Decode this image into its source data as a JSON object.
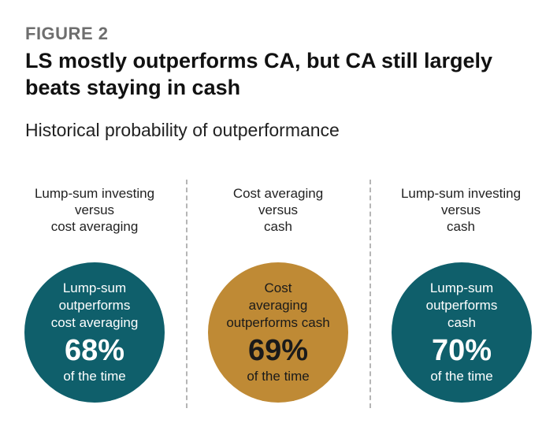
{
  "figure_label": "FIGURE 2",
  "title": "LS mostly outperforms CA, but CA still largely beats staying in cash",
  "subtitle": "Historical probability of outperformance",
  "chart_data": {
    "type": "table",
    "title": "LS mostly outperforms CA, but CA still largely beats staying in cash",
    "subtitle": "Historical probability of outperformance",
    "categories": [
      "Lump-sum investing versus cost averaging",
      "Cost averaging versus cash",
      "Lump-sum investing versus cash"
    ],
    "values": [
      68,
      69,
      70
    ],
    "unit": "%"
  },
  "columns": [
    {
      "label_lines": [
        "Lump-sum investing",
        "versus",
        "cost averaging"
      ],
      "circle_lines": [
        "Lump-sum",
        "outperforms",
        "cost averaging"
      ],
      "percent": "68%",
      "footer": "of the time",
      "color": "#0f5f6b"
    },
    {
      "label_lines": [
        "Cost averaging",
        "versus",
        "cash"
      ],
      "circle_lines": [
        "Cost",
        "averaging",
        "outperforms cash"
      ],
      "percent": "69%",
      "footer": "of the time",
      "color": "#bf8a35"
    },
    {
      "label_lines": [
        "Lump-sum investing",
        "versus",
        "cash"
      ],
      "circle_lines": [
        "Lump-sum",
        "outperforms",
        "cash"
      ],
      "percent": "70%",
      "footer": "of the time",
      "color": "#0f5f6b"
    }
  ]
}
